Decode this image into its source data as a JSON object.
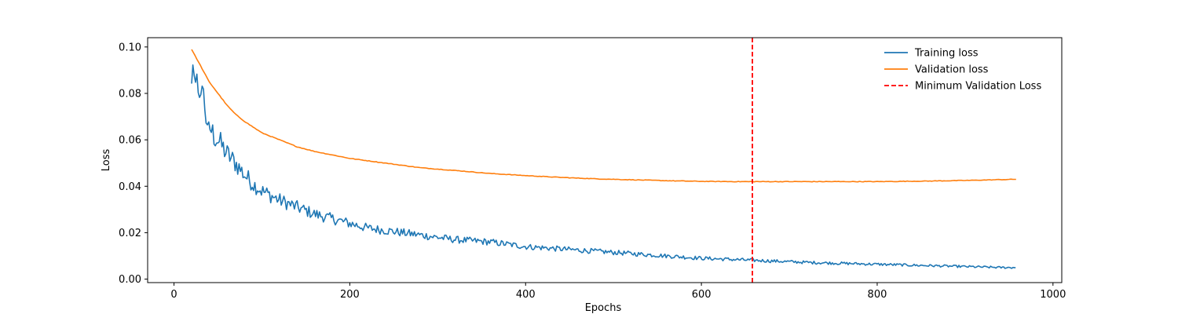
{
  "chart_data": {
    "type": "line",
    "title": "",
    "xlabel": "Epochs",
    "ylabel": "Loss",
    "xlim": [
      -30,
      1010
    ],
    "ylim": [
      -0.0015,
      0.104
    ],
    "x_ticks": [
      0,
      200,
      400,
      600,
      800,
      1000
    ],
    "y_ticks": [
      0.0,
      0.02,
      0.04,
      0.06,
      0.08,
      0.1
    ],
    "x_tick_labels": [
      "0",
      "200",
      "400",
      "600",
      "800",
      "1000"
    ],
    "y_tick_labels": [
      "0.00",
      "0.02",
      "0.04",
      "0.06",
      "0.08",
      "0.10"
    ],
    "grid": false,
    "legend_position": "top-right",
    "series": [
      {
        "name": "Training loss",
        "color": "#1f77b4",
        "style": "solid",
        "x": [
          20,
          22,
          24,
          26,
          28,
          30,
          33,
          36,
          40,
          45,
          50,
          55,
          60,
          70,
          80,
          90,
          100,
          110,
          120,
          140,
          160,
          180,
          200,
          220,
          240,
          260,
          280,
          300,
          320,
          340,
          360,
          380,
          400,
          420,
          440,
          460,
          480,
          500,
          520,
          540,
          560,
          580,
          600,
          620,
          640,
          660,
          680,
          700,
          720,
          740,
          760,
          780,
          800,
          820,
          840,
          860,
          880,
          900,
          920,
          940,
          958
        ],
        "y": [
          0.085,
          0.092,
          0.082,
          0.087,
          0.079,
          0.08,
          0.083,
          0.068,
          0.066,
          0.062,
          0.06,
          0.057,
          0.054,
          0.05,
          0.045,
          0.041,
          0.038,
          0.036,
          0.034,
          0.031,
          0.028,
          0.026,
          0.024,
          0.022,
          0.021,
          0.02,
          0.019,
          0.018,
          0.017,
          0.0165,
          0.016,
          0.015,
          0.014,
          0.0135,
          0.013,
          0.0125,
          0.012,
          0.0115,
          0.011,
          0.0105,
          0.01,
          0.0095,
          0.009,
          0.0087,
          0.0084,
          0.0081,
          0.0078,
          0.0075,
          0.0072,
          0.007,
          0.0068,
          0.0066,
          0.0064,
          0.0062,
          0.006,
          0.0058,
          0.0056,
          0.0054,
          0.0052,
          0.005,
          0.005
        ]
      },
      {
        "name": "Validation loss",
        "color": "#ff7f0e",
        "style": "solid",
        "x": [
          20,
          30,
          40,
          50,
          60,
          70,
          80,
          90,
          100,
          120,
          140,
          160,
          180,
          200,
          240,
          280,
          320,
          360,
          400,
          440,
          480,
          520,
          560,
          600,
          640,
          660,
          700,
          750,
          800,
          850,
          900,
          958
        ],
        "y": [
          0.099,
          0.092,
          0.085,
          0.08,
          0.075,
          0.071,
          0.068,
          0.0655,
          0.063,
          0.06,
          0.057,
          0.055,
          0.0535,
          0.052,
          0.05,
          0.048,
          0.0468,
          0.0455,
          0.0446,
          0.0438,
          0.0432,
          0.0428,
          0.0424,
          0.0421,
          0.042,
          0.042,
          0.042,
          0.042,
          0.042,
          0.0422,
          0.0425,
          0.043
        ]
      },
      {
        "name": "Minimum Validation Loss",
        "color": "#ff0000",
        "style": "dashed",
        "vline_x": 658
      }
    ]
  }
}
